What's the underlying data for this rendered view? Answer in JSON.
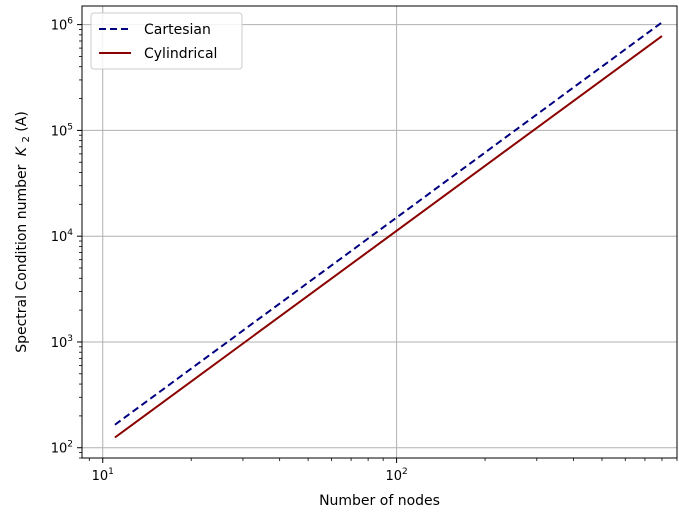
{
  "chart_data": {
    "type": "line",
    "xscale": "log",
    "yscale": "log",
    "xlabel": "Number of nodes",
    "ylabel": "Spectral Condition number",
    "ylabel_math": "K",
    "ylabel_math_sub": "2",
    "ylabel_math_arg": "(A)",
    "xlim": [
      8.5,
      900
    ],
    "ylim": [
      80,
      1500000
    ],
    "x_major_ticks": [
      10,
      100
    ],
    "x_tick_labels": [
      {
        "base": "10",
        "exp": "1"
      },
      {
        "base": "10",
        "exp": "2"
      }
    ],
    "y_major_ticks": [
      100,
      1000,
      10000,
      100000,
      1000000
    ],
    "y_tick_labels": [
      {
        "base": "10",
        "exp": "2"
      },
      {
        "base": "10",
        "exp": "3"
      },
      {
        "base": "10",
        "exp": "4"
      },
      {
        "base": "10",
        "exp": "5"
      },
      {
        "base": "10",
        "exp": "6"
      }
    ],
    "grid": true,
    "legend_position": "top-left",
    "series": [
      {
        "name": "Cartesian",
        "color": "#000080",
        "style": "dashed",
        "x": [
          11,
          800
        ],
        "y": [
          165,
          1050000
        ]
      },
      {
        "name": "Cylindrical",
        "color": "#8b0000",
        "style": "solid",
        "x": [
          11,
          800
        ],
        "y": [
          125,
          780000
        ]
      }
    ]
  }
}
